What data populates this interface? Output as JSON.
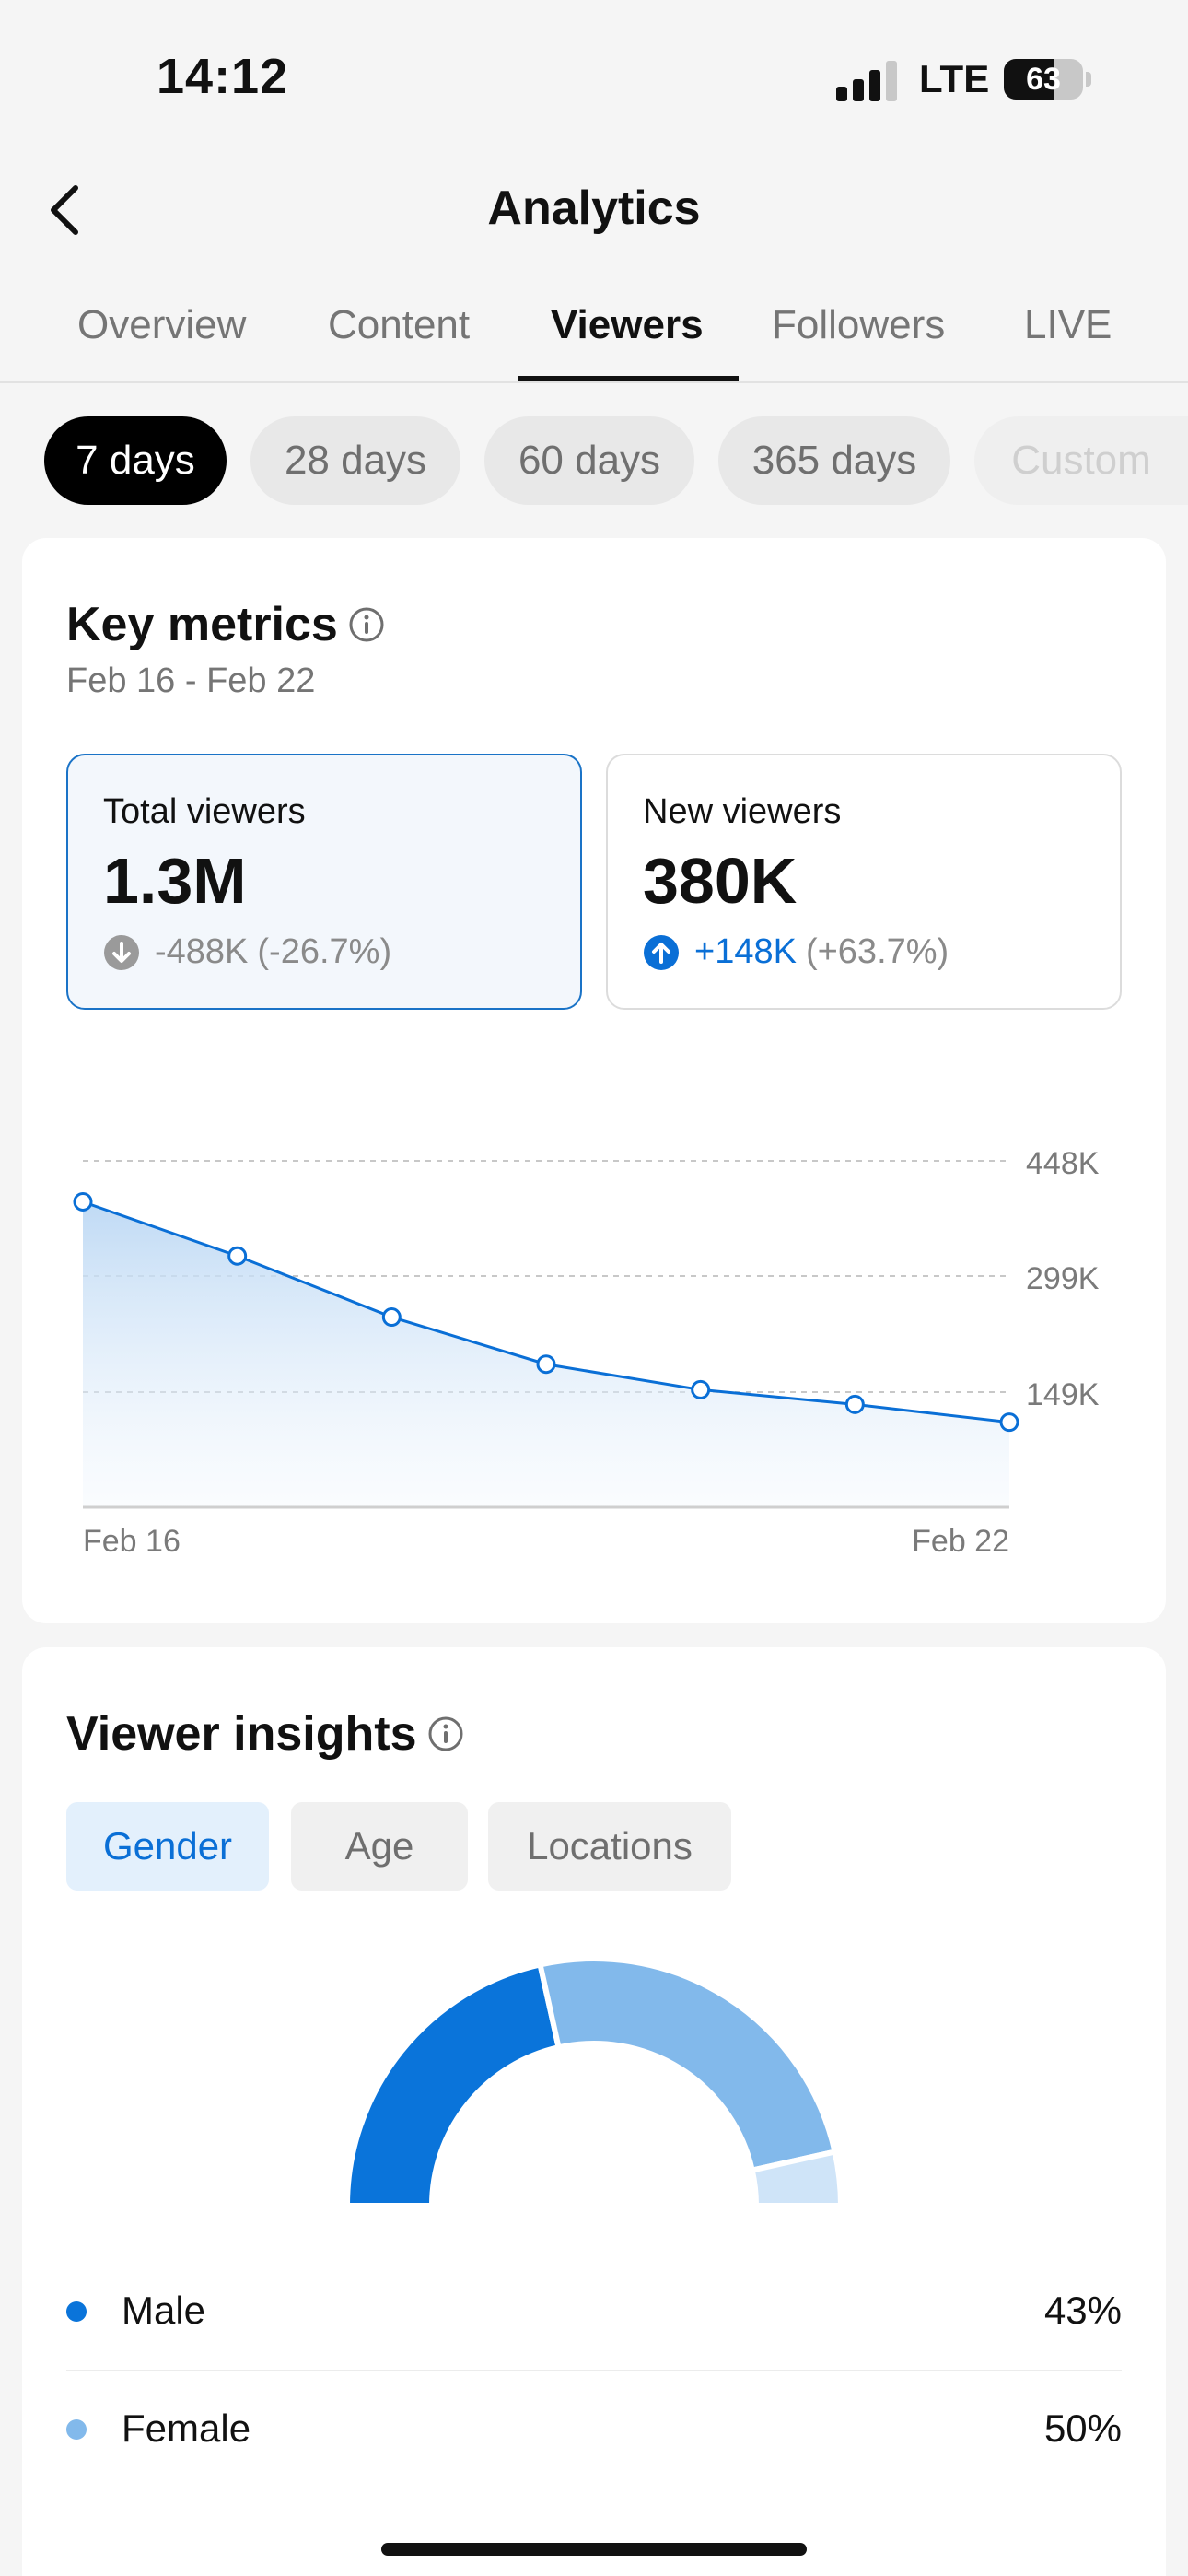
{
  "status_bar": {
    "time": "14:12",
    "network": "LTE",
    "battery": "63",
    "battery_level": 0.63
  },
  "header": {
    "title": "Analytics"
  },
  "tabs": [
    {
      "label": "Overview"
    },
    {
      "label": "Content"
    },
    {
      "label": "Viewers",
      "active": true
    },
    {
      "label": "Followers"
    },
    {
      "label": "LIVE"
    }
  ],
  "periods": [
    {
      "label": "7 days",
      "active": true
    },
    {
      "label": "28 days"
    },
    {
      "label": "60 days"
    },
    {
      "label": "365 days"
    },
    {
      "label": "Custom"
    }
  ],
  "key_metrics": {
    "title": "Key metrics",
    "date_range": "Feb 16 - Feb 22",
    "total_viewers": {
      "label": "Total viewers",
      "value": "1.3M",
      "change": "-488K",
      "change_pct": "(-26.7%)"
    },
    "new_viewers": {
      "label": "New viewers",
      "value": "380K",
      "change": "+148K",
      "change_pct": "(+63.7%)"
    }
  },
  "chart_data": {
    "type": "area",
    "x": [
      "Feb 16",
      "Feb 17",
      "Feb 18",
      "Feb 19",
      "Feb 20",
      "Feb 21",
      "Feb 22"
    ],
    "series": [
      {
        "values": [
          395000,
          325000,
          246000,
          185000,
          152000,
          133000,
          110000
        ]
      }
    ],
    "x_tick_labels": [
      "Feb 16",
      "Feb 22"
    ],
    "y_tick_labels": [
      "448K",
      "299K",
      "149K"
    ],
    "y_ticks": [
      448000,
      299000,
      149000
    ],
    "ylim": [
      0,
      448000
    ],
    "grid": true,
    "color": "#0a6fd6"
  },
  "viewer_insights": {
    "title": "Viewer insights",
    "segments": [
      {
        "label": "Gender",
        "active": true
      },
      {
        "label": "Age"
      },
      {
        "label": "Locations"
      }
    ],
    "gender": [
      {
        "label": "Male",
        "value": "43%",
        "fraction": 0.43,
        "color": "#0a74da"
      },
      {
        "label": "Female",
        "value": "50%",
        "fraction": 0.5,
        "color": "#82b9eb"
      },
      {
        "fraction": 0.07,
        "color": "#cfe4f8"
      }
    ]
  }
}
